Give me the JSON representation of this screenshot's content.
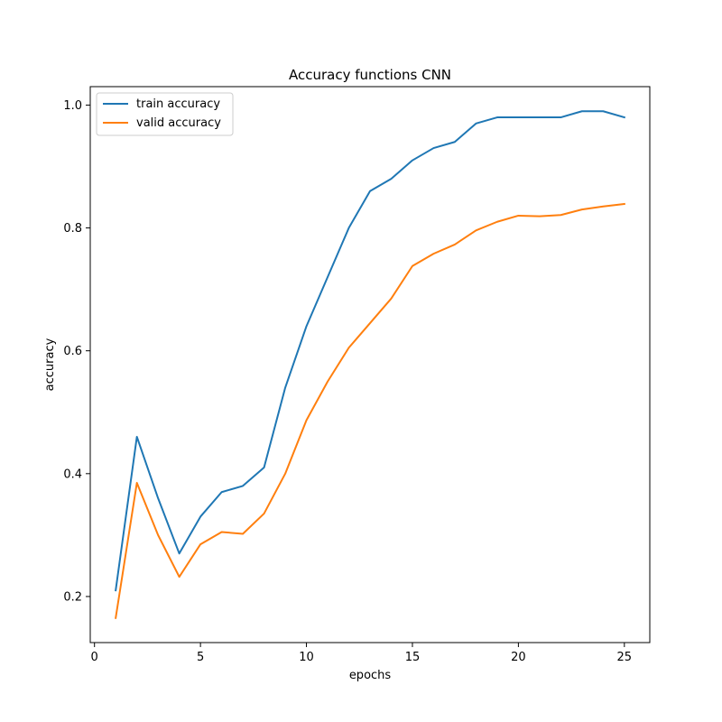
{
  "chart_data": {
    "type": "line",
    "title": "Accuracy functions CNN",
    "xlabel": "epochs",
    "ylabel": "accuracy",
    "xlim": [
      -0.2,
      26.2
    ],
    "ylim": [
      0.125,
      1.03
    ],
    "xticks": [
      0,
      5,
      10,
      15,
      20,
      25
    ],
    "yticks": [
      0.2,
      0.4,
      0.6,
      0.8,
      1.0
    ],
    "xtick_labels": [
      "0",
      "5",
      "10",
      "15",
      "20",
      "25"
    ],
    "ytick_labels": [
      "0.2",
      "0.4",
      "0.6",
      "0.8",
      "1.0"
    ],
    "grid": false,
    "legend_position": "top-left",
    "x": [
      1,
      2,
      3,
      4,
      5,
      6,
      7,
      8,
      9,
      10,
      11,
      12,
      13,
      14,
      15,
      16,
      17,
      18,
      19,
      20,
      21,
      22,
      23,
      24,
      25
    ],
    "series": [
      {
        "name": "train accuracy",
        "color": "#1f77b4",
        "values": [
          0.21,
          0.46,
          0.36,
          0.27,
          0.33,
          0.37,
          0.38,
          0.41,
          0.54,
          0.64,
          0.72,
          0.8,
          0.86,
          0.88,
          0.91,
          0.93,
          0.94,
          0.97,
          0.98,
          0.98,
          0.98,
          0.98,
          0.99,
          0.99,
          0.98
        ]
      },
      {
        "name": "valid accuracy",
        "color": "#ff7f0e",
        "values": [
          0.165,
          0.385,
          0.3,
          0.232,
          0.285,
          0.305,
          0.302,
          0.335,
          0.4,
          0.487,
          0.55,
          0.605,
          0.645,
          0.685,
          0.738,
          0.758,
          0.773,
          0.796,
          0.81,
          0.82,
          0.819,
          0.821,
          0.83,
          0.835,
          0.839
        ]
      }
    ]
  }
}
